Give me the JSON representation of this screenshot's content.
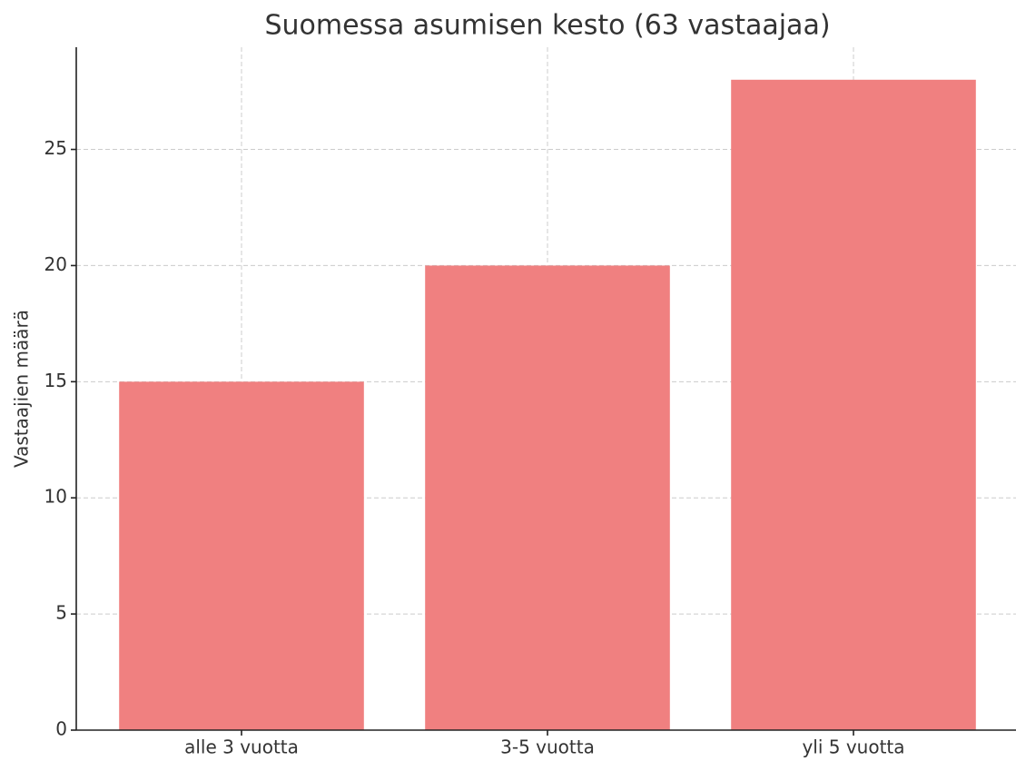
{
  "chart_data": {
    "type": "bar",
    "title": "Suomessa asumisen kesto (63 vastaajaa)",
    "ylabel": "Vastaajien määrä",
    "categories": [
      "alle 3 vuotta",
      "3-5 vuotta",
      "yli 5 vuotta"
    ],
    "values": [
      15,
      20,
      28
    ],
    "color": "#f08080",
    "ylim": [
      0,
      29.4
    ],
    "yticks": [
      0,
      5,
      10,
      15,
      20,
      25
    ],
    "grid": true
  }
}
